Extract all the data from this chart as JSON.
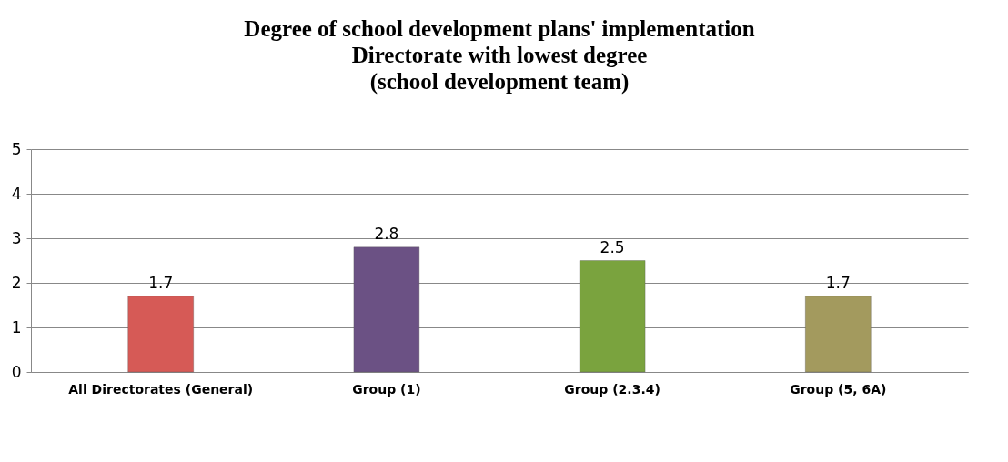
{
  "chart_data": {
    "type": "bar",
    "title": "Degree of school development plans' implementation\nDirectorate with lowest degree\n(school development team)",
    "categories": [
      "All Directorates (General)",
      "Group (1)",
      "Group (2.3.4)",
      "Group (5, 6A)"
    ],
    "values": [
      1.7,
      2.8,
      2.5,
      1.7
    ],
    "colors": [
      "#d65a56",
      "#6b5184",
      "#7aa33e",
      "#a39a5e"
    ],
    "ylim": [
      0,
      5
    ],
    "yticks": [
      0,
      1,
      2,
      3,
      4,
      5
    ],
    "grid": "y",
    "data_labels": true
  }
}
